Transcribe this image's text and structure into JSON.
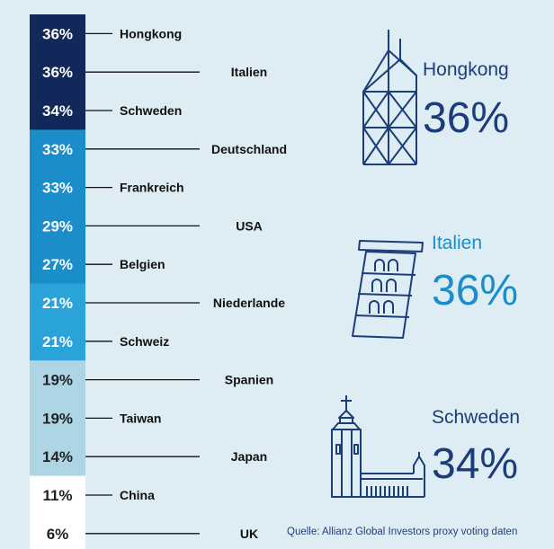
{
  "colors": {
    "background": "#deedf3",
    "dark_navy": "#13285a",
    "mid_blue": "#1b8dc9",
    "light_blue": "#2aa3d8",
    "pale_blue": "#aed5e4",
    "white": "#ffffff",
    "highlight_navy": "#1c3d7a",
    "highlight_blue": "#1b8dc9"
  },
  "chart_data": {
    "type": "bar",
    "categories": [
      "Hongkong",
      "Italien",
      "Schweden",
      "Deutschland",
      "Frankreich",
      "USA",
      "Belgien",
      "Niederlande",
      "Schweiz",
      "Spanien",
      "Taiwan",
      "Japan",
      "China",
      "UK"
    ],
    "values": [
      36,
      36,
      34,
      33,
      33,
      29,
      27,
      21,
      21,
      19,
      19,
      14,
      11,
      6
    ],
    "value_labels": [
      "36%",
      "36%",
      "34%",
      "33%",
      "33%",
      "29%",
      "27%",
      "21%",
      "21%",
      "19%",
      "19%",
      "14%",
      "11%",
      "6%"
    ],
    "unit": "%"
  },
  "highlights": [
    {
      "name": "Hongkong",
      "value": "36%",
      "icon": "bank-of-china-tower-icon"
    },
    {
      "name": "Italien",
      "value": "36%",
      "icon": "leaning-tower-of-pisa-icon"
    },
    {
      "name": "Schweden",
      "value": "34%",
      "icon": "stockholm-city-hall-icon"
    }
  ],
  "source": "Quelle: Allianz Global Investors proxy voting daten"
}
